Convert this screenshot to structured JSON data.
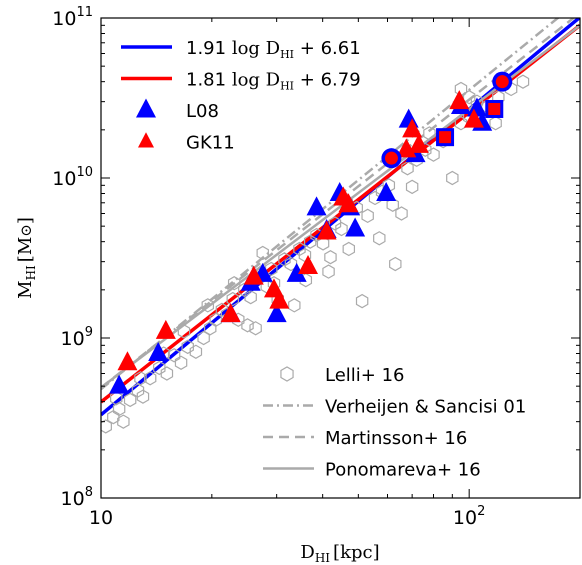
{
  "chart_data": {
    "type": "scatter",
    "xscale": "log",
    "yscale": "log",
    "xlim": [
      10,
      200
    ],
    "ylim": [
      100000000,
      100000000000
    ],
    "x_ticks": [
      {
        "value": 10,
        "base": "10",
        "exp": ""
      },
      {
        "value": 100,
        "base": "10",
        "exp": "2"
      }
    ],
    "y_ticks": [
      {
        "value": 100000000,
        "base": "10",
        "exp": "8"
      },
      {
        "value": 1000000000,
        "base": "10",
        "exp": "9"
      },
      {
        "value": 10000000000,
        "base": "10",
        "exp": "10"
      },
      {
        "value": 100000000000,
        "base": "10",
        "exp": "11"
      }
    ],
    "xlabel": {
      "main": "D",
      "sub": "HI",
      "unit": "[kpc]"
    },
    "ylabel": {
      "main": "M",
      "sub": "HI",
      "unit": "[M",
      "unit_end": "]"
    },
    "colors": {
      "blue": "#0000ff",
      "red": "#ff0000",
      "gray": "#aaaaaa"
    },
    "lines": [
      {
        "name": "1.91 log D_HI + 6.61",
        "label_prefix": "1.91 ",
        "label_log": "log D",
        "label_sub": "HI",
        "label_suffix": " + 6.61",
        "slope": 1.91,
        "intercept": 6.61,
        "color": "#0000ff",
        "style": "solid"
      },
      {
        "name": "1.81 log D_HI + 6.79",
        "label_prefix": "1.81 ",
        "label_log": "log D",
        "label_sub": "HI",
        "label_suffix": " + 6.79",
        "slope": 1.81,
        "intercept": 6.79,
        "color": "#ff0000",
        "style": "solid"
      },
      {
        "name": "Verheijen & Sancisi 01",
        "slope": 1.87,
        "intercept": 6.81,
        "color": "#aaaaaa",
        "style": "dashdot"
      },
      {
        "name": "Martinsson+ 16",
        "slope": 1.8,
        "intercept": 6.89,
        "color": "#aaaaaa",
        "style": "dashed"
      },
      {
        "name": "Ponomareva+ 16",
        "slope": 1.74,
        "intercept": 6.95,
        "color": "#aaaaaa",
        "style": "solid"
      }
    ],
    "series": [
      {
        "name": "Lelli+ 16",
        "marker": "hexagon-open",
        "color": "#aaaaaa",
        "points": [
          [
            10.3,
            280000000
          ],
          [
            10.8,
            320000000
          ],
          [
            11.5,
            300000000
          ],
          [
            11.2,
            360000000
          ],
          [
            12.0,
            410000000
          ],
          [
            12.6,
            470000000
          ],
          [
            13.0,
            430000000
          ],
          [
            13.6,
            560000000
          ],
          [
            14.4,
            650000000
          ],
          [
            15.1,
            600000000
          ],
          [
            15.8,
            780000000
          ],
          [
            16.5,
            700000000
          ],
          [
            17.2,
            880000000
          ],
          [
            18.1,
            820000000
          ],
          [
            19.0,
            1000000000
          ],
          [
            19.8,
            1150000000
          ],
          [
            20.5,
            1300000000
          ],
          [
            21.3,
            1500000000
          ],
          [
            22.0,
            1400000000
          ],
          [
            22.8,
            1750000000
          ],
          [
            23.6,
            1300000000
          ],
          [
            24.5,
            2000000000
          ],
          [
            25.5,
            1800000000
          ],
          [
            26.3,
            1150000000
          ],
          [
            27.0,
            2400000000
          ],
          [
            28.2,
            2100000000
          ],
          [
            29.0,
            2700000000
          ],
          [
            30.2,
            1750000000
          ],
          [
            31.5,
            3100000000
          ],
          [
            32.8,
            2900000000
          ],
          [
            33.5,
            1600000000
          ],
          [
            34.6,
            3600000000
          ],
          [
            35.8,
            3300000000
          ],
          [
            37.0,
            4000000000
          ],
          [
            38.5,
            4400000000
          ],
          [
            40.1,
            3900000000
          ],
          [
            41.5,
            2600000000
          ],
          [
            43.2,
            5200000000
          ],
          [
            45.0,
            4800000000
          ],
          [
            47.1,
            3600000000
          ],
          [
            49.5,
            6500000000
          ],
          [
            51.2,
            1700000000
          ],
          [
            53.0,
            5800000000
          ],
          [
            55.5,
            7500000000
          ],
          [
            58.0,
            8200000000
          ],
          [
            60.5,
            9000000000
          ],
          [
            63.0,
            2900000000
          ],
          [
            65.5,
            6000000000
          ],
          [
            68.0,
            11500000000
          ],
          [
            72.0,
            13000000000
          ],
          [
            76.0,
            15000000000
          ],
          [
            80.0,
            14000000000
          ],
          [
            85.0,
            17000000000
          ],
          [
            90.0,
            10000000000
          ],
          [
            95.0,
            22000000000
          ],
          [
            100.0,
            24000000000
          ],
          [
            105.0,
            30000000000
          ],
          [
            112.0,
            28000000000
          ],
          [
            120.0,
            32000000000
          ],
          [
            130.0,
            36000000000
          ],
          [
            140.0,
            40000000000
          ],
          [
            100.0,
            32000000000
          ],
          [
            95.0,
            36000000000
          ],
          [
            27.5,
            3400000000
          ],
          [
            23.0,
            2200000000
          ],
          [
            19.5,
            1600000000
          ],
          [
            16.8,
            1100000000
          ],
          [
            14.8,
            800000000
          ],
          [
            12.8,
            560000000
          ],
          [
            11.0,
            420000000
          ],
          [
            25.0,
            1200000000
          ],
          [
            29.5,
            2200000000
          ],
          [
            36.0,
            2300000000
          ],
          [
            42.0,
            3200000000
          ],
          [
            46.5,
            7000000000
          ],
          [
            57.0,
            4200000000
          ],
          [
            62.0,
            6800000000
          ],
          [
            70.0,
            8800000000
          ],
          [
            78.0,
            19000000000
          ],
          [
            118.0,
            22000000000
          ]
        ]
      },
      {
        "name": "L08",
        "marker": "triangle",
        "color": "#0000ff",
        "points": [
          [
            11.2,
            500000000
          ],
          [
            14.3,
            800000000
          ],
          [
            22.5,
            1400000000
          ],
          [
            25.5,
            2200000000
          ],
          [
            27.5,
            2500000000
          ],
          [
            30.0,
            1400000000
          ],
          [
            34.0,
            2500000000
          ],
          [
            38.5,
            6500000000
          ],
          [
            41.0,
            4700000000
          ],
          [
            44.5,
            8000000000
          ],
          [
            47.5,
            6500000000
          ],
          [
            49.0,
            4800000000
          ],
          [
            59.5,
            8000000000
          ],
          [
            68.5,
            23000000000
          ],
          [
            71.5,
            14000000000
          ],
          [
            95.0,
            28000000000
          ],
          [
            105.0,
            27000000000
          ],
          [
            108.5,
            22000000000
          ]
        ]
      },
      {
        "name": "GK11",
        "marker": "triangle",
        "color": "#ff0000",
        "points": [
          [
            11.8,
            700000000
          ],
          [
            15.0,
            1100000000
          ],
          [
            22.5,
            1400000000
          ],
          [
            26.0,
            2400000000
          ],
          [
            29.5,
            2000000000
          ],
          [
            30.5,
            1700000000
          ],
          [
            36.5,
            2800000000
          ],
          [
            41.0,
            4600000000
          ],
          [
            45.5,
            7500000000
          ],
          [
            47.0,
            6800000000
          ],
          [
            67.5,
            15000000000
          ],
          [
            70.0,
            20000000000
          ],
          [
            73.0,
            16000000000
          ],
          [
            94.0,
            30000000000
          ],
          [
            103.0,
            23000000000
          ]
        ]
      },
      {
        "name": "blue-circles",
        "marker": "circle",
        "color": "#0000ff",
        "points": [
          [
            61.5,
            13300000000
          ],
          [
            123.0,
            40000000000
          ]
        ]
      },
      {
        "name": "blue-squares",
        "marker": "square",
        "color": "#0000ff",
        "points": [
          [
            86.0,
            18000000000
          ],
          [
            117.0,
            27000000000
          ]
        ]
      },
      {
        "name": "red-circles",
        "marker": "circle",
        "color": "#ff0000",
        "points": [
          [
            61.5,
            13300000000
          ],
          [
            123.0,
            40000000000
          ]
        ]
      },
      {
        "name": "red-squares",
        "marker": "square",
        "color": "#ff0000",
        "points": [
          [
            86.0,
            18000000000
          ],
          [
            117.0,
            27000000000
          ]
        ]
      }
    ],
    "legend_upper": {
      "placement": "top-left",
      "entries": [
        {
          "kind": "line",
          "ref": 0
        },
        {
          "kind": "line",
          "ref": 1
        },
        {
          "kind": "marker",
          "label": "L08",
          "marker": "triangle",
          "color": "#0000ff"
        },
        {
          "kind": "marker",
          "label": "GK11",
          "marker": "triangle",
          "color": "#ff0000"
        }
      ]
    },
    "legend_lower": {
      "placement": "bottom-right",
      "entries": [
        {
          "kind": "marker",
          "label": "Lelli+ 16",
          "marker": "hexagon-open",
          "color": "#aaaaaa"
        },
        {
          "kind": "line",
          "label": "Verheijen & Sancisi 01",
          "style": "dashdot",
          "color": "#aaaaaa"
        },
        {
          "kind": "line",
          "label": "Martinsson+ 16",
          "style": "dashed",
          "color": "#aaaaaa"
        },
        {
          "kind": "line",
          "label": "Ponomareva+ 16",
          "style": "solid",
          "color": "#aaaaaa"
        }
      ]
    }
  }
}
